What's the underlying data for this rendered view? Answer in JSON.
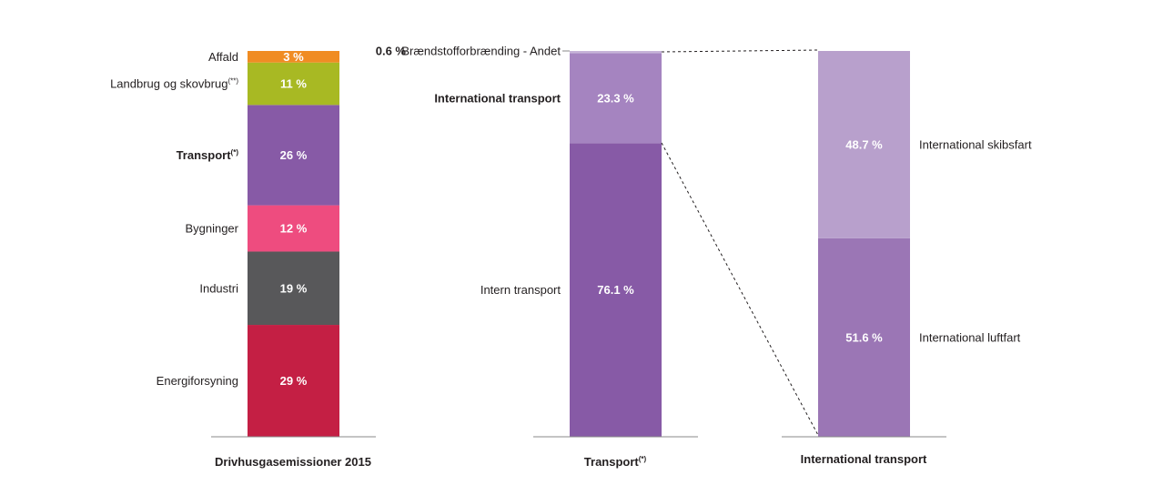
{
  "chart_data": [
    {
      "type": "bar",
      "stacked": true,
      "title": "Drivhusgasemissioner 2015",
      "unit": "%",
      "segments": [
        {
          "label": "Energiforsyning",
          "sup": "",
          "value": 29,
          "value_label": "29 %",
          "color": "#c41f44"
        },
        {
          "label": "Industri",
          "sup": "",
          "value": 19,
          "value_label": "19 %",
          "color": "#58585a"
        },
        {
          "label": "Bygninger",
          "sup": "",
          "value": 12,
          "value_label": "12 %",
          "color": "#ee4c7f"
        },
        {
          "label": "Transport",
          "sup": "(*)",
          "value": 26,
          "value_label": "26 %",
          "color": "#875aa6",
          "bold": true
        },
        {
          "label": "Landbrug og skovbrug",
          "sup": "(**)",
          "value": 11,
          "value_label": "11 %",
          "color": "#a8b923"
        },
        {
          "label": "Affald",
          "sup": "",
          "value": 3,
          "value_label": "3 %",
          "color": "#f08c23"
        }
      ]
    },
    {
      "type": "bar",
      "stacked": true,
      "title": "Transport",
      "title_sup": "(*)",
      "unit": "%",
      "segments": [
        {
          "label": "Intern transport",
          "value": 76.1,
          "value_label": "76.1 %",
          "color": "#875aa6"
        },
        {
          "label": "International transport",
          "value": 23.3,
          "value_label": "23.3 %",
          "color": "#a584c0",
          "bold": true
        },
        {
          "label": "Brændstofforbrænding - Andet",
          "value": 0.6,
          "value_label": "0.6 %",
          "color": "#c6b3d8"
        }
      ]
    },
    {
      "type": "bar",
      "stacked": true,
      "title": "International transport",
      "unit": "%",
      "segments": [
        {
          "label": "International luftfart",
          "value": 51.6,
          "value_label": "51.6 %",
          "color": "#9b76b5"
        },
        {
          "label": "International skibsfart",
          "value": 48.7,
          "value_label": "48.7 %",
          "color": "#b8a0cc"
        }
      ]
    }
  ]
}
